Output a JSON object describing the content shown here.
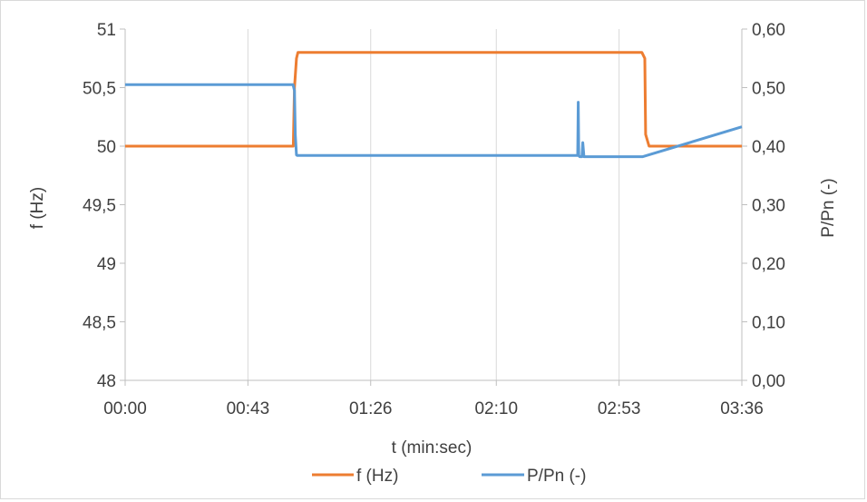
{
  "chart_data": {
    "type": "line",
    "title": "",
    "xlabel": "t (min:sec)",
    "ylabel_left": "f (Hz)",
    "ylabel_right": "P/Pn (-)",
    "x_unit": "seconds",
    "xlim": [
      0,
      216
    ],
    "x_ticks": [
      0,
      43,
      86,
      130,
      173,
      216
    ],
    "x_tick_labels": [
      "00:00",
      "00:43",
      "01:26",
      "02:10",
      "02:53",
      "03:36"
    ],
    "ylim_left": [
      48,
      51
    ],
    "y_ticks_left": [
      48,
      48.5,
      49,
      49.5,
      50,
      50.5,
      51
    ],
    "y_tick_labels_left": [
      "48",
      "48,5",
      "49",
      "49,5",
      "50",
      "50,5",
      "51"
    ],
    "ylim_right": [
      0,
      0.6
    ],
    "y_ticks_right": [
      0,
      0.1,
      0.2,
      0.3,
      0.4,
      0.5,
      0.6
    ],
    "y_tick_labels_right": [
      "0,00",
      "0,10",
      "0,20",
      "0,30",
      "0,40",
      "0,50",
      "0,60"
    ],
    "grid": "vertical",
    "legend_position": "bottom",
    "series": [
      {
        "name": "f (Hz)",
        "axis": "left",
        "color": "#ed7d31",
        "x": [
          0,
          58.9,
          59.3,
          60.0,
          60.5,
          181.0,
          182.0,
          182.3,
          183.5,
          216
        ],
        "y": [
          50.0,
          50.0,
          50.5,
          50.75,
          50.8,
          50.8,
          50.75,
          50.1,
          50.0,
          50.0
        ]
      },
      {
        "name": "P/Pn (-)",
        "axis": "right",
        "color": "#5b9bd5",
        "x": [
          0,
          58.8,
          59.3,
          59.6,
          60.0,
          60.3,
          158.5,
          158.7,
          158.9,
          159.2,
          160.0,
          160.3,
          160.7,
          161.0,
          162.0,
          181.3,
          216
        ],
        "y": [
          0.505,
          0.505,
          0.495,
          0.42,
          0.385,
          0.384,
          0.384,
          0.475,
          0.384,
          0.382,
          0.382,
          0.406,
          0.382,
          0.382,
          0.382,
          0.382,
          0.433
        ]
      }
    ]
  }
}
